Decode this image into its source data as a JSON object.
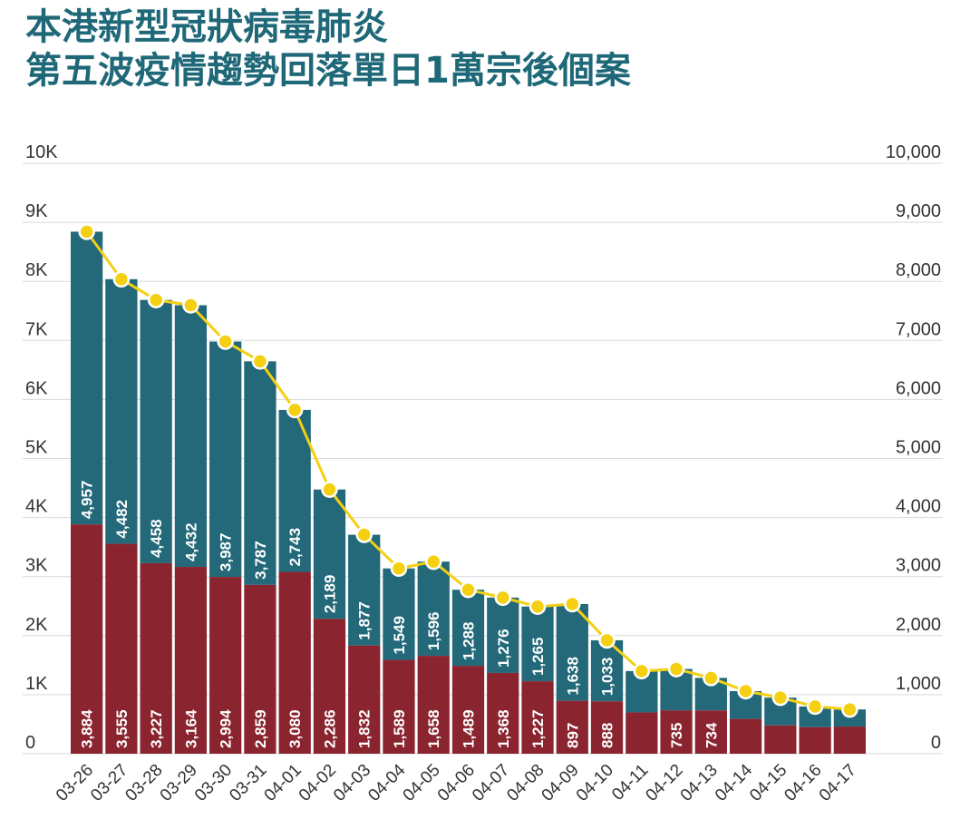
{
  "title_line1": "本港新型冠狀病毒肺炎",
  "title_line2": "第五波疫情趨勢回落單日1萬宗後個案",
  "colors": {
    "title": "#1f6878",
    "bar_top": "#23697a",
    "bar_bottom": "#8a2530",
    "line": "#f5cf12",
    "grid": "#d9d9d9"
  },
  "chart_data": {
    "type": "bar",
    "stacked": true,
    "categories": [
      "03-26",
      "03-27",
      "03-28",
      "03-29",
      "03-30",
      "03-31",
      "04-01",
      "04-02",
      "04-03",
      "04-04",
      "04-05",
      "04-06",
      "04-07",
      "04-08",
      "04-09",
      "04-10",
      "04-11",
      "04-12",
      "04-13",
      "04-14",
      "04-15",
      "04-16",
      "04-17"
    ],
    "series": [
      {
        "values": [
          3884,
          3555,
          3227,
          3164,
          2994,
          2859,
          3080,
          2286,
          1832,
          1589,
          1658,
          1489,
          1368,
          1227,
          897,
          888,
          700,
          735,
          734,
          590,
          480,
          450,
          460
        ],
        "labels": [
          "3,884",
          "3,555",
          "3,227",
          "3,164",
          "2,994",
          "2,859",
          "3,080",
          "2,286",
          "1,832",
          "1,589",
          "1,658",
          "1,489",
          "1,368",
          "1,227",
          "897",
          "888",
          "",
          "735",
          "734",
          "",
          "",
          "",
          ""
        ]
      },
      {
        "values": [
          4957,
          4482,
          4458,
          4432,
          3987,
          3787,
          2743,
          2189,
          1877,
          1549,
          1596,
          1288,
          1276,
          1265,
          1638,
          1033,
          700,
          700,
          550,
          470,
          470,
          350,
          290
        ],
        "labels": [
          "4,957",
          "4,482",
          "4,458",
          "4,432",
          "3,987",
          "3,787",
          "2,743",
          "2,189",
          "1,877",
          "1,549",
          "1,596",
          "1,288",
          "1,276",
          "1,265",
          "1,638",
          "1,033",
          "",
          "",
          "",
          "",
          "",
          "",
          ""
        ]
      }
    ],
    "line": {
      "values": [
        8841,
        8037,
        7685,
        7596,
        6981,
        6646,
        5823,
        4475,
        3709,
        3138,
        3254,
        2777,
        2644,
        2492,
        2535,
        1921,
        1400,
        1435,
        1284,
        1060,
        950,
        800,
        750
      ]
    },
    "y_left": {
      "min": 0,
      "max": 10000,
      "ticks": [
        "0",
        "1K",
        "2K",
        "3K",
        "4K",
        "5K",
        "6K",
        "7K",
        "8K",
        "9K",
        "10K"
      ]
    },
    "y_right": {
      "min": 0,
      "max": 10000,
      "ticks": [
        "0",
        "1,000",
        "2,000",
        "3,000",
        "4,000",
        "5,000",
        "6,000",
        "7,000",
        "8,000",
        "9,000",
        "10,000"
      ]
    },
    "grid": true,
    "legend": "none"
  }
}
